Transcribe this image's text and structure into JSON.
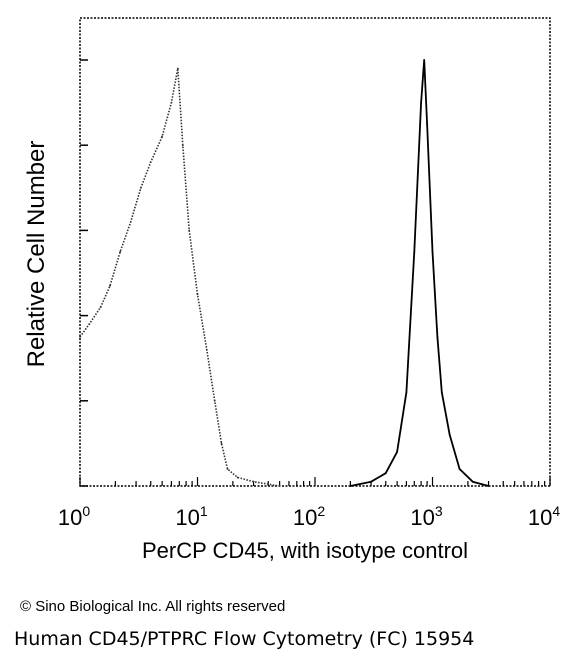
{
  "chart_data": {
    "type": "histogram",
    "xscale": "log",
    "xlim": [
      1,
      10000
    ],
    "ylabel": "Relative Cell Number",
    "xlabel": "PerCP CD45, with isotype control",
    "xticks": [
      {
        "base": "10",
        "exp": "0"
      },
      {
        "base": "10",
        "exp": "1"
      },
      {
        "base": "10",
        "exp": "2"
      },
      {
        "base": "10",
        "exp": "3"
      },
      {
        "base": "10",
        "exp": "4"
      }
    ],
    "ylim": [
      0,
      1
    ],
    "series": [
      {
        "style": "dotted",
        "color": "#333333",
        "points": [
          [
            1.0,
            0.35
          ],
          [
            1.2,
            0.38
          ],
          [
            1.5,
            0.42
          ],
          [
            1.8,
            0.47
          ],
          [
            2.2,
            0.55
          ],
          [
            2.7,
            0.62
          ],
          [
            3.3,
            0.7
          ],
          [
            4.0,
            0.76
          ],
          [
            5.0,
            0.82
          ],
          [
            6.0,
            0.9
          ],
          [
            6.8,
            0.98
          ],
          [
            7.5,
            0.8
          ],
          [
            8.5,
            0.6
          ],
          [
            10,
            0.45
          ],
          [
            12,
            0.32
          ],
          [
            14,
            0.2
          ],
          [
            16,
            0.1
          ],
          [
            18,
            0.04
          ],
          [
            22,
            0.02
          ],
          [
            30,
            0.01
          ],
          [
            50,
            0.0
          ]
        ]
      },
      {
        "style": "solid",
        "color": "#000000",
        "points": [
          [
            200,
            0.0
          ],
          [
            300,
            0.01
          ],
          [
            400,
            0.03
          ],
          [
            500,
            0.08
          ],
          [
            600,
            0.22
          ],
          [
            700,
            0.55
          ],
          [
            800,
            0.9
          ],
          [
            850,
            1.0
          ],
          [
            900,
            0.85
          ],
          [
            1000,
            0.55
          ],
          [
            1100,
            0.35
          ],
          [
            1200,
            0.22
          ],
          [
            1400,
            0.12
          ],
          [
            1700,
            0.04
          ],
          [
            2200,
            0.01
          ],
          [
            3000,
            0.0
          ]
        ]
      }
    ]
  },
  "footer": {
    "copyright": "© Sino Biological Inc. All rights reserved",
    "caption": "Human CD45/PTPRC Flow Cytometry (FC) 15954"
  }
}
